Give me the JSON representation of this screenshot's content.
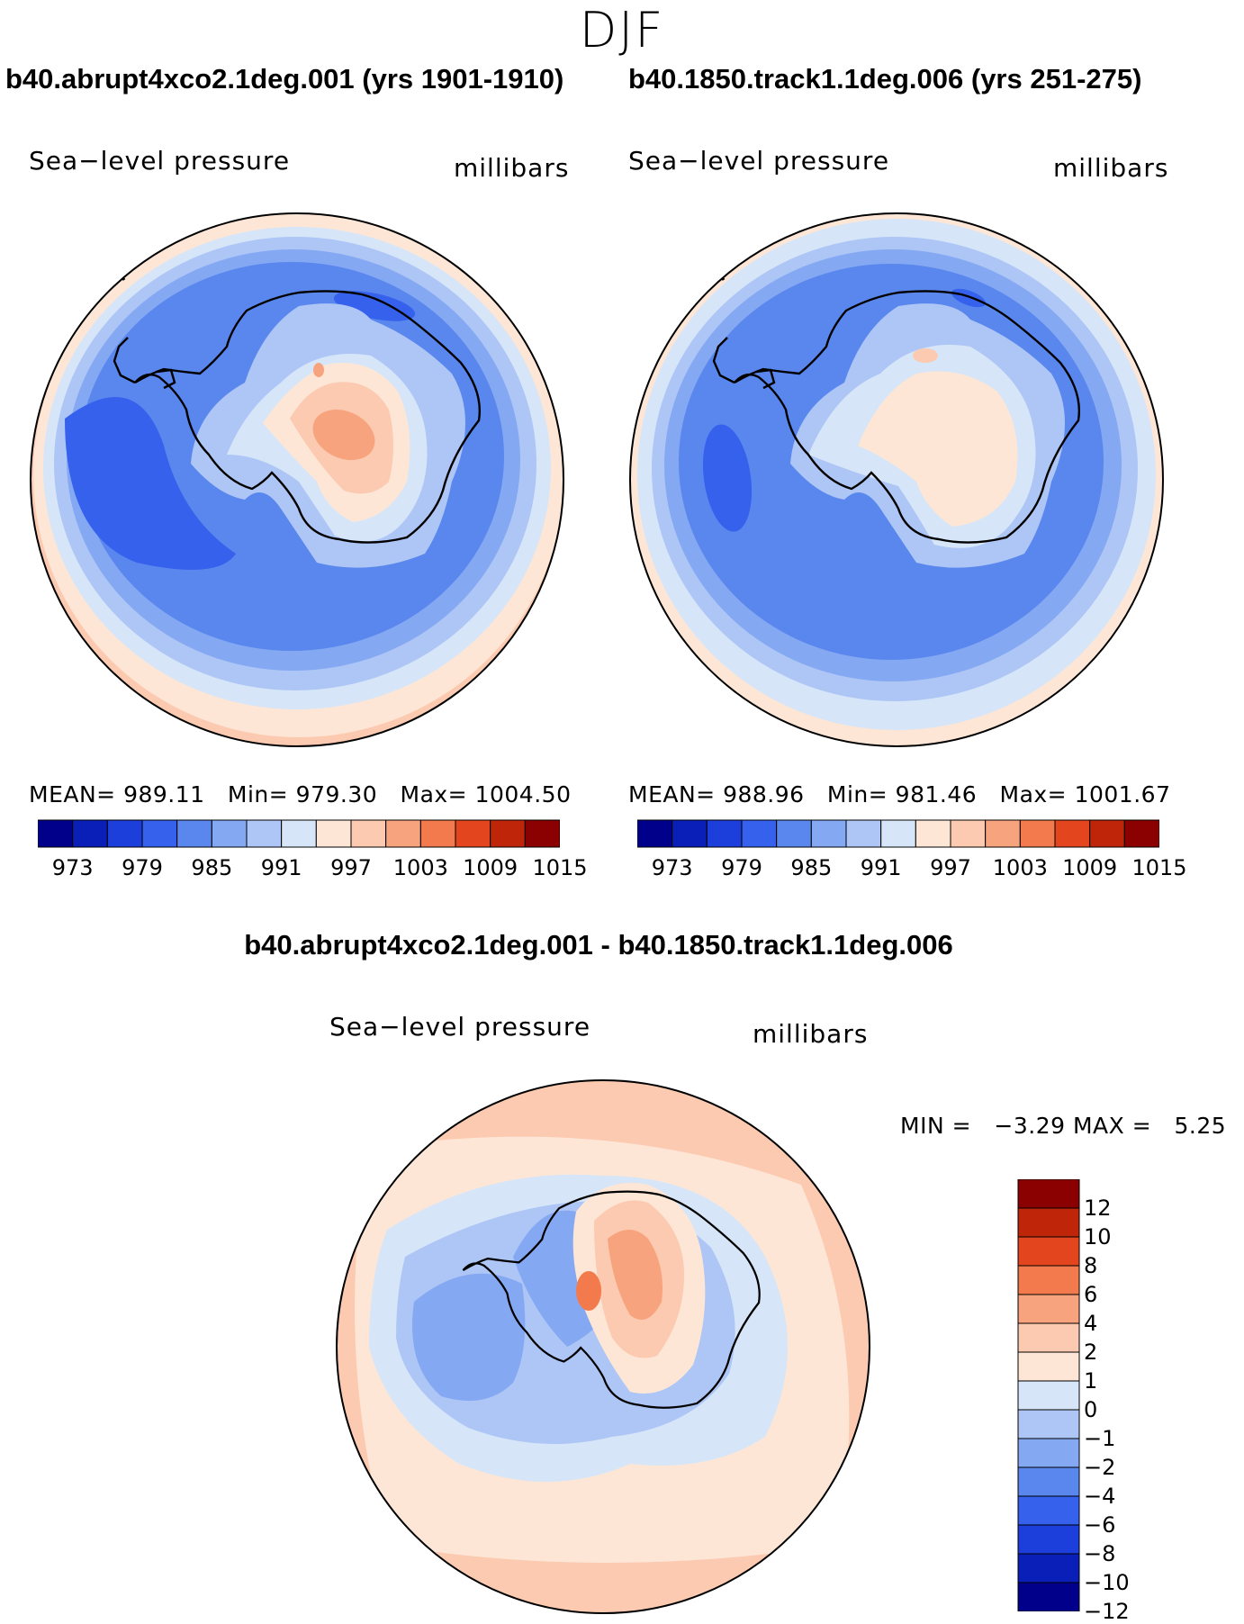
{
  "season": "DJF",
  "palette": [
    "#00008b",
    "#0a1fb8",
    "#1c3edb",
    "#3561ec",
    "#5a87ee",
    "#84a8f2",
    "#aec6f6",
    "#d6e6f8",
    "#fde6d6",
    "#fbcab0",
    "#f7a47e",
    "#f27a4c",
    "#e3461f",
    "#bf2508",
    "#8b0000"
  ],
  "coastline_color": "#000000",
  "panels": {
    "left": {
      "title": "b40.abrupt4xco2.1deg.001 (yrs 1901-1910)",
      "variable": "Sea−level pressure",
      "units": "millibars",
      "stats": {
        "mean_label": "MEAN=",
        "mean": "989.11",
        "min_label": "Min=",
        "min": "979.30",
        "max_label": "Max=",
        "max": "1004.50"
      },
      "colorbar_ticks": [
        "973",
        "979",
        "985",
        "991",
        "997",
        "1003",
        "1009",
        "1015"
      ]
    },
    "right": {
      "title": "b40.1850.track1.1deg.006 (yrs 251-275)",
      "variable": "Sea−level pressure",
      "units": "millibars",
      "stats": {
        "mean_label": "MEAN=",
        "mean": "988.96",
        "min_label": "Min=",
        "min": "981.46",
        "max_label": "Max=",
        "max": "1001.67"
      },
      "colorbar_ticks": [
        "973",
        "979",
        "985",
        "991",
        "997",
        "1003",
        "1009",
        "1015"
      ]
    },
    "diff": {
      "title": "b40.abrupt4xco2.1deg.001 - b40.1850.track1.1deg.006",
      "variable": "Sea−level pressure",
      "units": "millibars",
      "stats": {
        "min_label": "MIN =",
        "min": "−3.29",
        "max_label": "MAX =",
        "max": "5.25"
      },
      "colorbar_ticks": [
        "12",
        "10",
        "8",
        "6",
        "4",
        "2",
        "1",
        "0",
        "−1",
        "−2",
        "−4",
        "−6",
        "−8",
        "−10",
        "−12"
      ]
    }
  }
}
